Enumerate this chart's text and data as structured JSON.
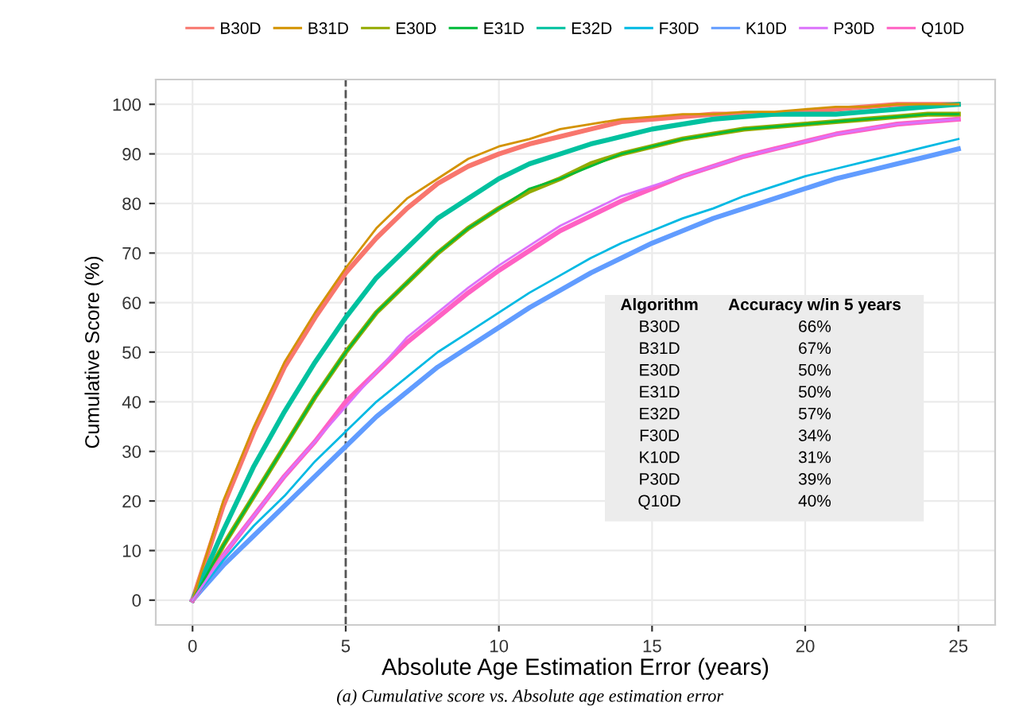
{
  "chart_data": {
    "type": "line",
    "xlabel": "Absolute Age Estimation Error (years)",
    "ylabel": "Cumulative Score (%)",
    "x": [
      0,
      1,
      2,
      3,
      4,
      5,
      6,
      7,
      8,
      9,
      10,
      11,
      12,
      13,
      14,
      15,
      16,
      17,
      18,
      19,
      20,
      21,
      22,
      23,
      24,
      25
    ],
    "series": [
      {
        "name": "B30D",
        "color": "#f8766d",
        "values": [
          0,
          19,
          34,
          47,
          57,
          66,
          73,
          79,
          84,
          87.5,
          90,
          92,
          93.5,
          95,
          96.5,
          97,
          97.5,
          98,
          98,
          98,
          98.5,
          99,
          99.5,
          100,
          100,
          100
        ]
      },
      {
        "name": "B31D",
        "color": "#d39200",
        "values": [
          0,
          20,
          35,
          48,
          58,
          67,
          75,
          81,
          85,
          89,
          91.5,
          93,
          95,
          96,
          97,
          97.5,
          98,
          98,
          98.5,
          98.5,
          99,
          99.5,
          99.5,
          100,
          100,
          100
        ]
      },
      {
        "name": "E30D",
        "color": "#93aa00",
        "values": [
          0,
          11,
          21,
          31,
          41,
          50,
          58,
          64,
          70,
          75,
          79,
          82.5,
          85,
          88,
          90,
          91.5,
          93,
          94,
          95,
          95.5,
          96,
          96.5,
          97,
          97.5,
          98,
          98
        ]
      },
      {
        "name": "E31D",
        "color": "#00ba38",
        "values": [
          0,
          11,
          21,
          31,
          41,
          50,
          58,
          64,
          70,
          75,
          79,
          83,
          85,
          87.5,
          90,
          91.5,
          93,
          94,
          95,
          95.5,
          96,
          96.5,
          97,
          97.5,
          98,
          98
        ]
      },
      {
        "name": "E32D",
        "color": "#00c19f",
        "values": [
          0,
          14,
          27,
          38,
          48,
          57,
          65,
          71,
          77,
          81,
          85,
          88,
          90,
          92,
          93.5,
          95,
          96,
          97,
          97.5,
          98,
          98,
          98,
          98.5,
          99,
          99.5,
          100
        ]
      },
      {
        "name": "F30D",
        "color": "#00b9e3",
        "values": [
          0,
          8,
          15,
          21,
          28,
          34,
          40,
          45,
          50,
          54,
          58,
          62,
          65.5,
          69,
          72,
          74.5,
          77,
          79,
          81.5,
          83.5,
          85.5,
          87,
          88.5,
          90,
          91.5,
          93
        ]
      },
      {
        "name": "K10D",
        "color": "#619cff",
        "values": [
          0,
          7,
          13,
          19,
          25,
          31,
          37,
          42,
          47,
          51,
          55,
          59,
          62.5,
          66,
          69,
          72,
          74.5,
          77,
          79,
          81,
          83,
          85,
          86.5,
          88,
          89.5,
          91
        ]
      },
      {
        "name": "P30D",
        "color": "#db72fb",
        "values": [
          0,
          9,
          17,
          25,
          32,
          39,
          46,
          53,
          58,
          63,
          67.5,
          71.5,
          75.5,
          78.5,
          81.5,
          83.5,
          85.5,
          87.5,
          89.5,
          91,
          92.5,
          94,
          95,
          96,
          96.5,
          97
        ]
      },
      {
        "name": "Q10D",
        "color": "#ff61c3",
        "values": [
          0,
          9,
          17,
          25,
          32,
          40,
          46,
          52,
          57,
          62,
          66.5,
          70.5,
          74.5,
          77.5,
          80.5,
          83,
          85.5,
          87.5,
          89.5,
          91,
          92.5,
          94,
          95,
          96,
          96.5,
          97
        ]
      }
    ],
    "xlim": [
      -1.2,
      26.2
    ],
    "ylim": [
      -5,
      105
    ],
    "xticks": [
      0,
      5,
      10,
      15,
      20,
      25
    ],
    "yticks": [
      0,
      10,
      20,
      30,
      40,
      50,
      60,
      70,
      80,
      90,
      100
    ],
    "grid": true,
    "legend": "top",
    "line_style": "solid",
    "marker": "none",
    "ref_lines": [
      {
        "axis": "x",
        "value": 5,
        "color": "#555555",
        "line_style": "dashed"
      }
    ],
    "annotations": [
      "Algorithm",
      "Accuracy w/in 5 years",
      "B30D",
      "66%",
      "B31D",
      "67%",
      "E30D",
      "50%",
      "E31D",
      "50%",
      "E32D",
      "57%",
      "F30D",
      "34%",
      "K10D",
      "31%",
      "P30D",
      "39%",
      "Q10D",
      "40%",
      "(a) Cumulative score vs. Absolute age estimation error"
    ]
  }
}
